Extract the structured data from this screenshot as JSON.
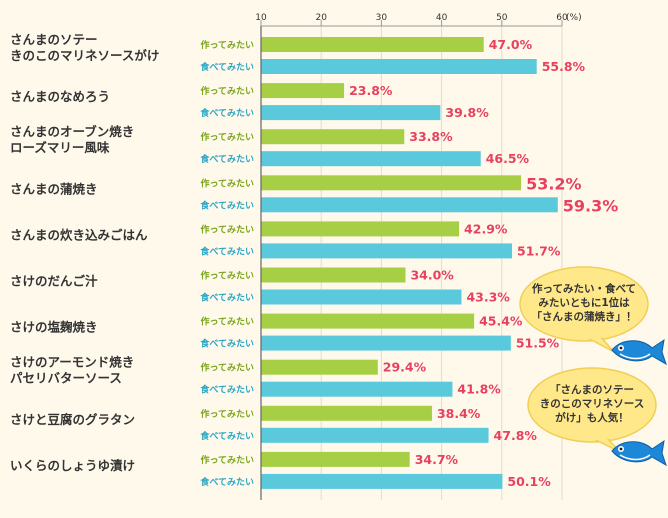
{
  "chart_data": {
    "type": "bar",
    "orientation": "horizontal",
    "x_unit": "(%)",
    "xlim": [
      10,
      60
    ],
    "xticks": [
      "10",
      "20",
      "30",
      "40",
      "50",
      "60"
    ],
    "categories": [
      [
        "さんまのソテー",
        "きのこのマリネソースがけ"
      ],
      [
        "さんまのなめろう"
      ],
      [
        "さんまのオーブン焼き",
        "ローズマリー風味"
      ],
      [
        "さんまの蒲焼き"
      ],
      [
        "さんまの炊き込みごはん"
      ],
      [
        "さけのだんご汁"
      ],
      [
        "さけの塩麹焼き"
      ],
      [
        "さけのアーモンド焼き",
        "パセリバターソース"
      ],
      [
        "さけと豆腐のグラタン"
      ],
      [
        "いくらのしょうゆ漬け"
      ]
    ],
    "series": [
      {
        "name": "作ってみたい",
        "color": "#a6cf45",
        "label_color": "#7aa51c",
        "values": [
          47.0,
          23.8,
          33.8,
          53.2,
          42.9,
          34.0,
          45.4,
          29.4,
          38.4,
          34.7
        ],
        "labels": [
          "47.0%",
          "23.8%",
          "33.8%",
          "53.2%",
          "42.9%",
          "34.0%",
          "45.4%",
          "29.4%",
          "38.4%",
          "34.7%"
        ]
      },
      {
        "name": "食べてみたい",
        "color": "#5ac9dc",
        "label_color": "#2ba5c4",
        "values": [
          55.8,
          39.8,
          46.5,
          59.3,
          51.7,
          43.3,
          51.5,
          41.8,
          47.8,
          50.1
        ],
        "labels": [
          "55.8%",
          "39.8%",
          "46.5%",
          "59.3%",
          "51.7%",
          "43.3%",
          "51.5%",
          "41.8%",
          "47.8%",
          "50.1%"
        ]
      }
    ],
    "highlight_category_index": 3,
    "value_label_color": "#e8415f",
    "grid": true
  },
  "callouts": [
    {
      "lines": [
        "作ってみたい・食べて",
        "みたいともに1位は",
        "「さんまの蒲焼き」！"
      ]
    },
    {
      "lines": [
        "「さんまのソテー",
        "きのこのマリネソース",
        "がけ」も人気！"
      ]
    }
  ]
}
